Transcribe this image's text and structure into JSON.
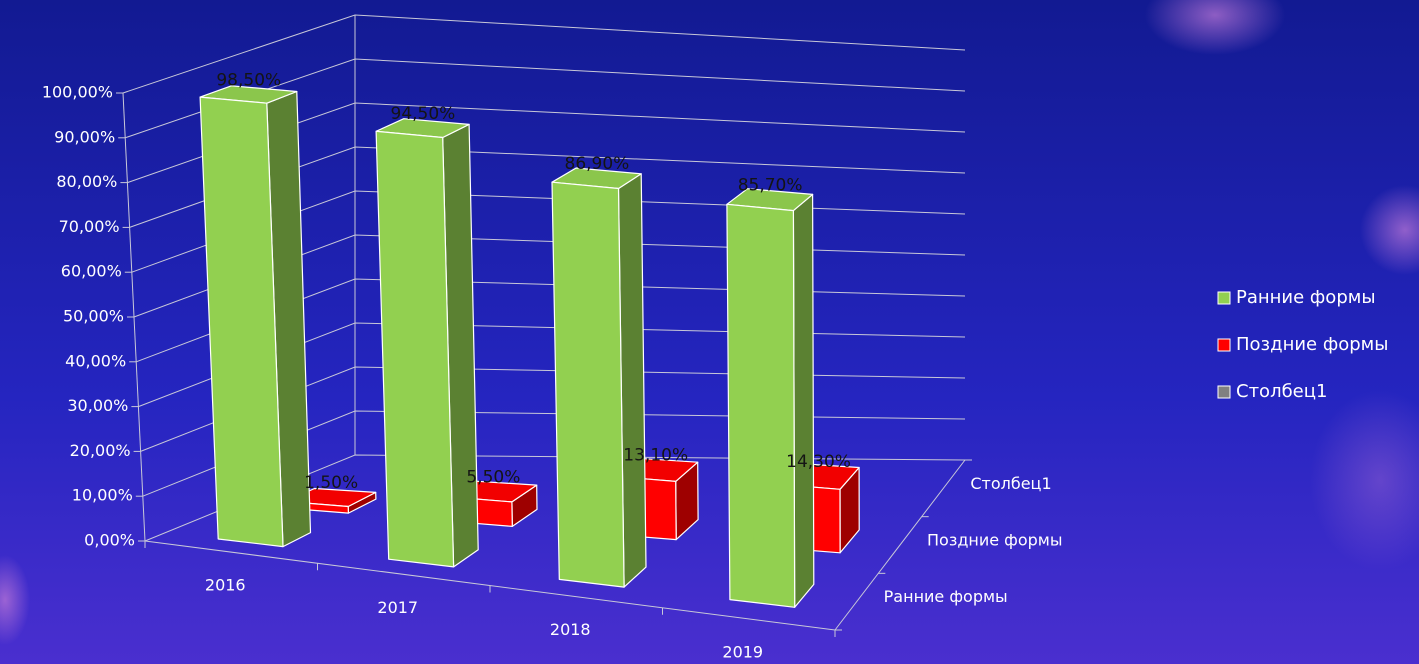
{
  "chart_data": {
    "type": "bar3d",
    "categories": [
      "2016",
      "2017",
      "2018",
      "2019"
    ],
    "series": [
      {
        "name": "Ранние формы",
        "color": "#92d050",
        "values": [
          98.5,
          94.5,
          86.9,
          85.7
        ],
        "value_labels": [
          "98,50%",
          "94,50%",
          "86,90%",
          "85,70%"
        ]
      },
      {
        "name": "Поздние формы",
        "color": "#ff0000",
        "values": [
          1.5,
          5.5,
          13.1,
          14.3
        ],
        "value_labels": [
          "1,50%",
          "5,50%",
          "13,10%",
          "14,30%"
        ]
      },
      {
        "name": "Столбец1",
        "color": "#808080",
        "values": [
          null,
          null,
          null,
          null
        ]
      }
    ],
    "ylim": [
      0,
      100
    ],
    "yticks": [
      {
        "value": 0,
        "label": "0,00%"
      },
      {
        "value": 10,
        "label": "10,00%"
      },
      {
        "value": 20,
        "label": "20,00%"
      },
      {
        "value": 30,
        "label": "30,00%"
      },
      {
        "value": 40,
        "label": "40,00%"
      },
      {
        "value": 50,
        "label": "50,00%"
      },
      {
        "value": 60,
        "label": "60,00%"
      },
      {
        "value": 70,
        "label": "70,00%"
      },
      {
        "value": 80,
        "label": "80,00%"
      },
      {
        "value": 90,
        "label": "90,00%"
      },
      {
        "value": 100,
        "label": "100,00%"
      }
    ],
    "grid": true
  }
}
